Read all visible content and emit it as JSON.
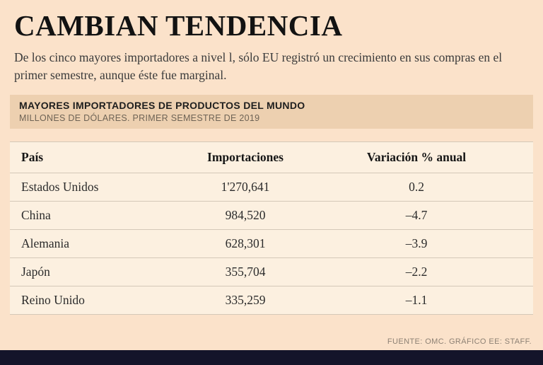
{
  "title": "CAMBIAN TENDENCIA",
  "subtitle": "De los cinco mayores importadores a nivel l, sólo EU registró un crecimiento en sus compras en el primer semestre, aunque éste fue marginal.",
  "panel": {
    "heading": "MAYORES IMPORTADORES DE PRODUCTOS DEL MUNDO",
    "subheading": "MILLONES DE DÓLARES. PRIMER SEMESTRE DE 2019"
  },
  "table": {
    "columns": [
      "País",
      "Importaciones",
      "Variación % anual"
    ],
    "rows": [
      [
        "Estados Unidos",
        "1'270,641",
        "0.2"
      ],
      [
        "China",
        "984,520",
        "–4.7"
      ],
      [
        "Alemania",
        "628,301",
        "–3.9"
      ],
      [
        "Japón",
        "355,704",
        "–2.2"
      ],
      [
        "Reino Unido",
        "335,259",
        "–1.1"
      ]
    ]
  },
  "footer": "FUENTE: OMC. GRÁFICO EE: STAFF.",
  "colors": {
    "page_background": "#fbe2ca",
    "band_background": "#edd0b0",
    "table_background": "#fcf0e0",
    "divider": "#d4c8b8",
    "bottom_bar": "#14142a",
    "text": "#2b2b2b"
  },
  "chart_data": {
    "type": "table",
    "title": "MAYORES IMPORTADORES DE PRODUCTOS DEL MUNDO",
    "subtitle": "MILLONES DE DÓLARES. PRIMER SEMESTRE DE 2019",
    "columns": [
      "País",
      "Importaciones",
      "Variación % anual"
    ],
    "rows": [
      {
        "pais": "Estados Unidos",
        "importaciones": 1270641,
        "variacion_pct_anual": 0.2
      },
      {
        "pais": "China",
        "importaciones": 984520,
        "variacion_pct_anual": -4.7
      },
      {
        "pais": "Alemania",
        "importaciones": 628301,
        "variacion_pct_anual": -3.9
      },
      {
        "pais": "Japón",
        "importaciones": 355704,
        "variacion_pct_anual": -2.2
      },
      {
        "pais": "Reino Unido",
        "importaciones": 335259,
        "variacion_pct_anual": -1.1
      }
    ],
    "notes": "Los cinco mayores importadores; sólo EU (0.2%) registró crecimiento en el primer semestre de 2019."
  }
}
